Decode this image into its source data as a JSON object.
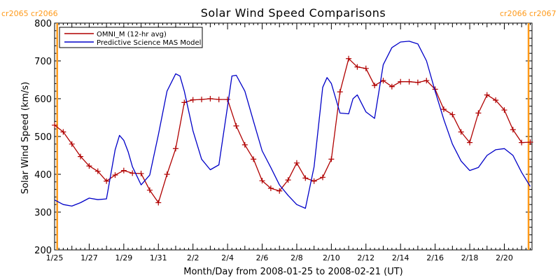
{
  "chart_data": {
    "type": "line",
    "title": "Solar Wind Speed Comparisons",
    "xlabel": "Month/Day from 2008-01-25 to 2008-02-21 (UT)",
    "ylabel": "Solar Wind Speed (km/s)",
    "xlim": [
      0,
      27.6
    ],
    "ylim": [
      200,
      800
    ],
    "y_ticks": [
      200,
      300,
      400,
      500,
      600,
      700,
      800
    ],
    "x_ticks": [
      {
        "day": 0,
        "label": "1/25"
      },
      {
        "day": 2,
        "label": "1/27"
      },
      {
        "day": 4,
        "label": "1/29"
      },
      {
        "day": 6,
        "label": "1/31"
      },
      {
        "day": 8,
        "label": "2/2"
      },
      {
        "day": 10,
        "label": "2/4"
      },
      {
        "day": 12,
        "label": "2/6"
      },
      {
        "day": 14,
        "label": "2/8"
      },
      {
        "day": 16,
        "label": "2/10"
      },
      {
        "day": 18,
        "label": "2/12"
      },
      {
        "day": 20,
        "label": "2/14"
      },
      {
        "day": 22,
        "label": "2/16"
      },
      {
        "day": 24,
        "label": "2/18"
      },
      {
        "day": 26,
        "label": "2/20"
      }
    ],
    "legend_position": "top-left",
    "rotation_markers": [
      {
        "day": 0.15,
        "left_label": "cr2065",
        "right_label": "cr2066",
        "side": "left"
      },
      {
        "day": 27.4,
        "left_label": "cr2066",
        "right_label": "cr2067",
        "side": "right"
      }
    ],
    "series": [
      {
        "name": "OMNI_M (12-hr avg)",
        "color": "#b00000",
        "marker": "plus",
        "x": [
          0,
          0.5,
          1,
          1.5,
          2,
          2.5,
          3,
          3.5,
          4,
          4.5,
          5,
          5.5,
          6,
          6.5,
          7,
          7.5,
          8,
          8.5,
          9,
          9.5,
          10,
          10.5,
          11,
          11.5,
          12,
          12.5,
          13,
          13.5,
          14,
          14.5,
          15,
          15.5,
          16,
          16.5,
          17,
          17.5,
          18,
          18.5,
          19,
          19.5,
          20,
          20.5,
          21,
          21.5,
          22,
          22.5,
          23,
          23.5,
          24,
          24.5,
          25,
          25.5,
          26,
          26.5,
          27,
          27.5
        ],
        "values": [
          530,
          512,
          480,
          447,
          422,
          408,
          382,
          398,
          410,
          403,
          402,
          358,
          325,
          400,
          468,
          590,
          597,
          598,
          600,
          598,
          598,
          528,
          478,
          440,
          383,
          363,
          356,
          385,
          430,
          390,
          382,
          392,
          440,
          618,
          706,
          684,
          680,
          635,
          648,
          632,
          645,
          645,
          643,
          648,
          625,
          572,
          558,
          512,
          484,
          562,
          610,
          596,
          570,
          518,
          484,
          485
        ]
      },
      {
        "name": "Predictive Science MAS Model",
        "color": "#0000c8",
        "marker": "none",
        "x": [
          0,
          0.5,
          1,
          1.5,
          2,
          2.5,
          3,
          3.5,
          3.75,
          4,
          4.25,
          4.5,
          5,
          5.5,
          6,
          6.5,
          7,
          7.25,
          7.5,
          8,
          8.5,
          9,
          9.5,
          10,
          10.25,
          10.5,
          11,
          11.5,
          12,
          12.5,
          13,
          13.5,
          14,
          14.5,
          15,
          15.5,
          15.75,
          16,
          16.5,
          17,
          17.25,
          17.5,
          18,
          18.5,
          19,
          19.5,
          20,
          20.5,
          21,
          21.5,
          22,
          22.5,
          23,
          23.5,
          24,
          24.5,
          25,
          25.5,
          26,
          26.5,
          27,
          27.5
        ],
        "values": [
          332,
          320,
          316,
          325,
          337,
          333,
          335,
          465,
          503,
          490,
          460,
          420,
          372,
          398,
          505,
          620,
          666,
          660,
          620,
          515,
          440,
          412,
          425,
          580,
          660,
          662,
          620,
          540,
          462,
          418,
          372,
          344,
          320,
          310,
          420,
          630,
          656,
          640,
          562,
          560,
          600,
          610,
          565,
          548,
          690,
          735,
          750,
          752,
          745,
          700,
          620,
          545,
          480,
          435,
          410,
          418,
          450,
          465,
          468,
          450,
          405,
          368
        ]
      }
    ]
  }
}
